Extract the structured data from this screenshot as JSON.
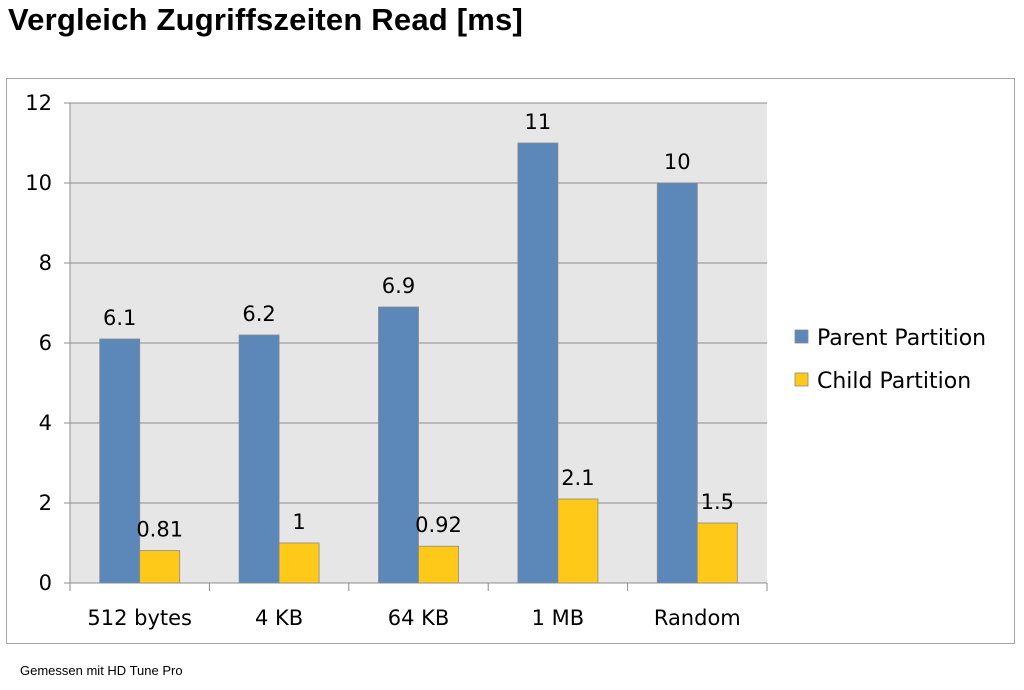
{
  "page": {
    "title": "Vergleich Zugriffszeiten Read [ms]",
    "footnote": "Gemessen mit HD Tune Pro"
  },
  "chart_data": {
    "type": "bar",
    "title": "",
    "xlabel": "",
    "ylabel": "",
    "categories": [
      "512 bytes",
      "4 KB",
      "64 KB",
      "1 MB",
      "Random"
    ],
    "series": [
      {
        "name": "Parent Partition",
        "color": "#5b87b9",
        "values": [
          6.1,
          6.2,
          6.9,
          11,
          10
        ],
        "labels": [
          "6.1",
          "6.2",
          "6.9",
          "11",
          "10"
        ]
      },
      {
        "name": "Child Partition",
        "color": "#ffc91a",
        "values": [
          0.81,
          1,
          0.92,
          2.1,
          1.5
        ],
        "labels": [
          "0.81",
          "1",
          "0.92",
          "2.1",
          "1.5"
        ]
      }
    ],
    "ylim": [
      0,
      12
    ],
    "yticks": [
      "0",
      "2",
      "4",
      "6",
      "8",
      "10",
      "12"
    ],
    "grid": true,
    "plot_background": "#e6e6e6",
    "legend_position": "right"
  }
}
